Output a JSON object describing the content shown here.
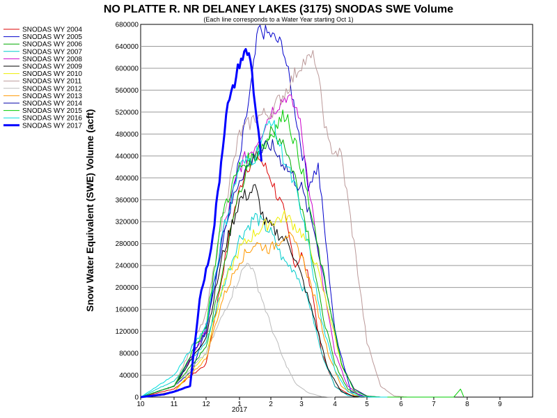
{
  "chart_data": {
    "type": "line",
    "title": "NO PLATTE R. NR DELANEY LAKES (3175) SNODAS SWE Volume",
    "subtitle": "(Each line corresponds to a Water Year starting Oct 1)",
    "ylabel": "Snow Water Equivalent (SWE) Volume (acft)",
    "xlabel": "",
    "xlim": [
      10,
      10.9
    ],
    "ylim": [
      0,
      680000
    ],
    "x_tick_values": [
      10,
      11,
      12,
      1,
      2,
      3,
      4,
      5,
      6,
      7,
      8,
      9
    ],
    "x_tick_labels": [
      "10",
      "11",
      "12",
      "1",
      "2",
      "3",
      "4",
      "5",
      "6",
      "7",
      "8",
      "9"
    ],
    "x_sublabel": "2017",
    "y_ticks": [
      "0",
      "40000",
      "80000",
      "120000",
      "160000",
      "200000",
      "240000",
      "280000",
      "320000",
      "360000",
      "400000",
      "440000",
      "480000",
      "520000",
      "560000",
      "600000",
      "640000",
      "680000"
    ],
    "grid": true,
    "legend_position": "left",
    "series": [
      {
        "name": "SNODAS WY 2004",
        "color": "#dd0000",
        "width": 1,
        "x": [
          0,
          1,
          2,
          2.3,
          2.8,
          3.2,
          3.6,
          4,
          4.4,
          4.8,
          5.0,
          5.3,
          5.6,
          6,
          6.5,
          7,
          7.5
        ],
        "y": [
          0,
          15000,
          60000,
          160000,
          330000,
          420000,
          440000,
          400000,
          340000,
          240000,
          260000,
          200000,
          80000,
          20000,
          3000,
          0,
          0
        ]
      },
      {
        "name": "SNODAS WY 2005",
        "color": "#0000cc",
        "width": 1,
        "x": [
          0,
          1,
          1.6,
          2,
          2.5,
          3,
          3.4,
          3.6,
          4,
          4.4,
          4.8,
          5.2,
          5.5,
          6,
          6.5,
          7,
          7.5
        ],
        "y": [
          0,
          20000,
          50000,
          130000,
          280000,
          430000,
          580000,
          670000,
          660000,
          640000,
          520000,
          390000,
          420000,
          120000,
          10000,
          0,
          0
        ]
      },
      {
        "name": "SNODAS WY 2006",
        "color": "#00aa00",
        "width": 1,
        "x": [
          0,
          1,
          2,
          2.5,
          3,
          3.5,
          4,
          4.4,
          4.8,
          5.2,
          5.6,
          6,
          6.4,
          6.8,
          7.2
        ],
        "y": [
          0,
          20000,
          90000,
          230000,
          380000,
          440000,
          480000,
          470000,
          400000,
          300000,
          160000,
          60000,
          15000,
          2000,
          0
        ]
      },
      {
        "name": "SNODAS WY 2007",
        "color": "#00cccc",
        "width": 1,
        "x": [
          0,
          1,
          2,
          2.5,
          3,
          3.5,
          4,
          4.4,
          4.8,
          5.2,
          5.6,
          6,
          6.4,
          6.8
        ],
        "y": [
          0,
          30000,
          100000,
          200000,
          290000,
          330000,
          300000,
          250000,
          230000,
          180000,
          80000,
          20000,
          3000,
          0
        ]
      },
      {
        "name": "SNODAS WY 2008",
        "color": "#cc00cc",
        "width": 1,
        "x": [
          0,
          1,
          2,
          2.5,
          3,
          3.5,
          4,
          4.5,
          4.9,
          5.2,
          5.6,
          6,
          6.4,
          6.8,
          7.2
        ],
        "y": [
          0,
          20000,
          120000,
          300000,
          420000,
          460000,
          520000,
          550000,
          520000,
          400000,
          220000,
          80000,
          20000,
          2000,
          0
        ]
      },
      {
        "name": "SNODAS WY 2009",
        "color": "#000000",
        "width": 1,
        "x": [
          0,
          1,
          2,
          2.5,
          3,
          3.5,
          3.8,
          4.2,
          4.6,
          5,
          5.4,
          5.8,
          6.2,
          6.6,
          7
        ],
        "y": [
          0,
          20000,
          110000,
          260000,
          360000,
          380000,
          320000,
          300000,
          280000,
          220000,
          140000,
          50000,
          10000,
          1000,
          0
        ]
      },
      {
        "name": "SNODAS WY 2010",
        "color": "#eeee00",
        "width": 1,
        "x": [
          0,
          1,
          2,
          2.5,
          3,
          3.5,
          4,
          4.5,
          5,
          5.4,
          5.8,
          6.2,
          6.6,
          7,
          7.4
        ],
        "y": [
          0,
          10000,
          80000,
          200000,
          270000,
          300000,
          320000,
          330000,
          300000,
          250000,
          160000,
          60000,
          15000,
          2000,
          0
        ]
      },
      {
        "name": "SNODAS WY 2011",
        "color": "#bb9999",
        "width": 1,
        "x": [
          0,
          1,
          2,
          2.5,
          3,
          3.5,
          4,
          4.5,
          5,
          5.4,
          5.8,
          6.2,
          6.6,
          7,
          7.4,
          7.8,
          8.2
        ],
        "y": [
          0,
          20000,
          150000,
          330000,
          480000,
          510000,
          520000,
          560000,
          610000,
          620000,
          460000,
          440000,
          280000,
          100000,
          20000,
          2000,
          0
        ]
      },
      {
        "name": "SNODAS WY 2012",
        "color": "#bbbbbb",
        "width": 1,
        "x": [
          0,
          1,
          2,
          2.5,
          3,
          3.3,
          3.6,
          4,
          4.4,
          4.8,
          5.2,
          5.6,
          6
        ],
        "y": [
          0,
          20000,
          80000,
          150000,
          220000,
          250000,
          200000,
          130000,
          70000,
          25000,
          8000,
          1000,
          0
        ]
      },
      {
        "name": "SNODAS WY 2013",
        "color": "#ff9900",
        "width": 1,
        "x": [
          0,
          1,
          2,
          2.5,
          3,
          3.5,
          4,
          4.5,
          5,
          5.4,
          5.8,
          6.2,
          6.6,
          7
        ],
        "y": [
          0,
          10000,
          70000,
          180000,
          250000,
          280000,
          270000,
          300000,
          260000,
          180000,
          80000,
          20000,
          3000,
          0
        ]
      },
      {
        "name": "SNODAS WY 2014",
        "color": "#0000aa",
        "width": 1,
        "x": [
          0,
          1,
          2,
          2.5,
          3,
          3.5,
          4,
          4.5,
          5,
          5.4,
          5.8,
          6.2,
          6.6,
          7,
          7.4
        ],
        "y": [
          0,
          20000,
          120000,
          300000,
          400000,
          440000,
          460000,
          420000,
          380000,
          300000,
          180000,
          60000,
          15000,
          2000,
          0
        ]
      },
      {
        "name": "SNODAS WY 2015",
        "color": "#00cc00",
        "width": 1,
        "x": [
          0,
          1,
          2,
          2.5,
          3,
          3.5,
          4,
          4.5,
          5,
          5.4,
          5.8,
          6.2,
          6.6,
          7,
          7.4,
          8,
          8.5,
          9,
          9.6,
          9.8,
          9.9
        ],
        "y": [
          0,
          20000,
          130000,
          340000,
          420000,
          440000,
          480000,
          520000,
          420000,
          300000,
          180000,
          60000,
          12000,
          1500,
          0,
          0,
          0,
          0,
          0,
          15000,
          0
        ]
      },
      {
        "name": "SNODAS WY 2016",
        "color": "#00dddd",
        "width": 1,
        "x": [
          0,
          1,
          2,
          2.5,
          3,
          3.5,
          4,
          4.4,
          4.8,
          5.2,
          5.6,
          6,
          6.4,
          6.8,
          7.2,
          7.6
        ],
        "y": [
          0,
          40000,
          130000,
          300000,
          420000,
          440000,
          510000,
          440000,
          380000,
          280000,
          140000,
          50000,
          10000,
          1000,
          0,
          0
        ]
      },
      {
        "name": "SNODAS WY 2017",
        "color": "#0000ff",
        "width": 3,
        "x": [
          0,
          0.7,
          1.0,
          1.5,
          1.8,
          2.0,
          2.2,
          2.4,
          2.6,
          2.8,
          3.0,
          3.2,
          3.35,
          3.45,
          3.6,
          3.7
        ],
        "y": [
          0,
          5000,
          10000,
          20000,
          180000,
          230000,
          290000,
          400000,
          520000,
          560000,
          610000,
          630000,
          620000,
          560000,
          480000,
          430000
        ]
      }
    ]
  }
}
